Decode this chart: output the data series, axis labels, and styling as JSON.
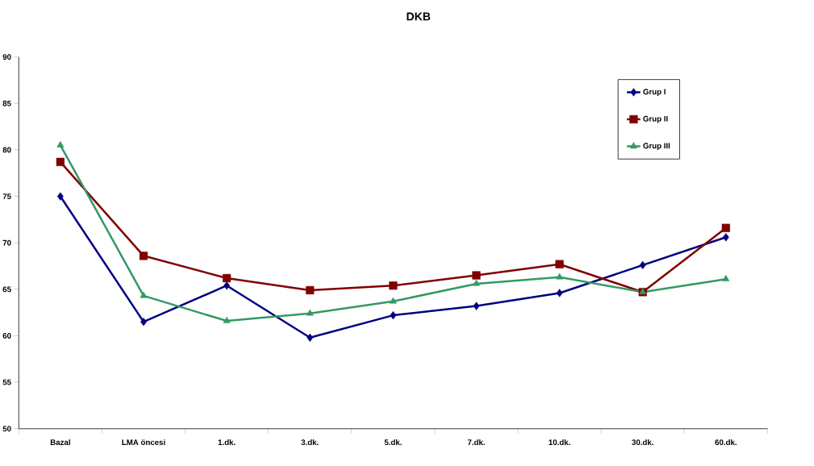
{
  "chart_data": {
    "type": "line",
    "title": "DKB",
    "categories": [
      "Bazal",
      "LMA öncesi",
      "1.dk.",
      "3.dk.",
      "5.dk.",
      "7.dk.",
      "10.dk.",
      "30.dk.",
      "60.dk."
    ],
    "series": [
      {
        "name": "Grup I",
        "color": "#000080",
        "marker": "diamond",
        "values": [
          75.0,
          61.5,
          65.4,
          59.8,
          62.2,
          63.2,
          64.6,
          67.6,
          70.6
        ]
      },
      {
        "name": "Grup II",
        "color": "#800000",
        "marker": "square",
        "values": [
          78.7,
          68.6,
          66.2,
          64.9,
          65.4,
          66.5,
          67.7,
          64.7,
          71.6
        ]
      },
      {
        "name": "Grup III",
        "color": "#339966",
        "marker": "triangle",
        "values": [
          80.5,
          64.3,
          61.6,
          62.4,
          63.7,
          65.6,
          66.3,
          64.7,
          66.1
        ]
      }
    ],
    "ylim": [
      50,
      90
    ],
    "yticks": [
      50,
      55,
      60,
      65,
      70,
      75,
      80,
      85,
      90
    ],
    "grid": false,
    "legend": "top right",
    "line_style": "solid"
  }
}
